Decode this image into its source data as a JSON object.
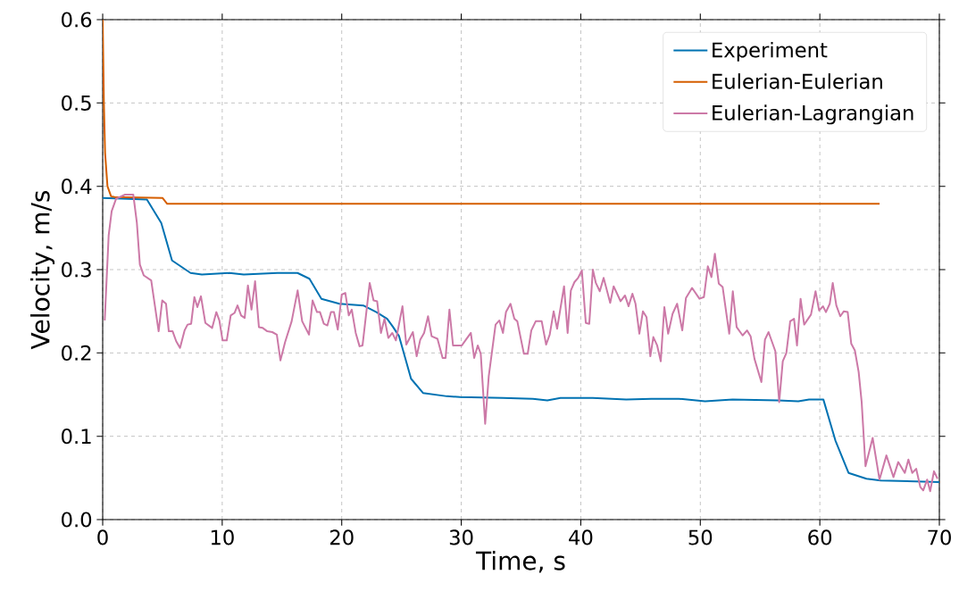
{
  "chart_data": {
    "type": "line",
    "xlabel": "Time, s",
    "ylabel": "Velocity, m/s",
    "xlim": [
      0,
      70
    ],
    "ylim": [
      0,
      0.6
    ],
    "xticks": [
      0,
      10,
      20,
      30,
      40,
      50,
      60,
      70
    ],
    "yticks": [
      {
        "value": 0,
        "label": "0.0"
      },
      0.1,
      0.2,
      0.3,
      0.4,
      0.5,
      0.6
    ],
    "grid": true,
    "legend": "top right",
    "series": [
      {
        "name": "Experiment",
        "color": "#0072b2",
        "x": [
          0,
          3.7,
          4.9,
          5.8,
          7.35,
          8.3,
          10.6,
          11.8,
          14.6,
          16.3,
          17.3,
          18.3,
          19.8,
          21.8,
          22.9,
          23.8,
          24.3,
          24.8,
          25.8,
          26.8,
          28.8,
          29.9,
          33.5,
          36,
          37.2,
          38.3,
          41,
          43.8,
          45.9,
          48.2,
          50.4,
          52.7,
          56.5,
          58.2,
          59.1,
          60.3,
          61.3,
          62.4,
          63.9,
          65.1,
          70
        ],
        "values": [
          0.386,
          0.384,
          0.356,
          0.311,
          0.296,
          0.294,
          0.296,
          0.294,
          0.296,
          0.296,
          0.289,
          0.265,
          0.259,
          0.257,
          0.249,
          0.241,
          0.231,
          0.22,
          0.169,
          0.152,
          0.148,
          0.147,
          0.146,
          0.145,
          0.143,
          0.146,
          0.146,
          0.144,
          0.145,
          0.145,
          0.142,
          0.144,
          0.143,
          0.142,
          0.144,
          0.144,
          0.095,
          0.056,
          0.049,
          0.047,
          0.045
        ]
      },
      {
        "name": "Eulerian-Eulerian",
        "color": "#d55e00",
        "x": [
          0,
          0.1,
          0.2,
          0.4,
          0.7,
          1,
          5,
          5.4,
          65
        ],
        "values": [
          0.6,
          0.5,
          0.44,
          0.4,
          0.388,
          0.387,
          0.386,
          0.379,
          0.379
        ]
      },
      {
        "name": "Eulerian-Lagrangian",
        "color": "#cc79a7",
        "x": [
          0.17,
          0.5,
          0.75,
          1.12,
          1.87,
          2.56,
          2.86,
          3.11,
          3.44,
          4.06,
          4.68,
          4.98,
          5.3,
          5.53,
          5.85,
          6.15,
          6.47,
          6.85,
          7.1,
          7.4,
          7.67,
          7.92,
          8.22,
          8.59,
          9.16,
          9.51,
          9.76,
          10.03,
          10.38,
          10.71,
          11.03,
          11.28,
          11.58,
          11.88,
          12.15,
          12.45,
          12.75,
          13.07,
          13.39,
          13.77,
          14.19,
          14.57,
          14.87,
          15.26,
          15.81,
          16.31,
          16.69,
          17.26,
          17.56,
          17.93,
          18.18,
          18.5,
          18.8,
          19.1,
          19.35,
          19.67,
          20.0,
          20.3,
          20.59,
          20.84,
          21.17,
          21.49,
          21.74,
          22.34,
          22.66,
          22.96,
          23.28,
          23.58,
          23.9,
          24.23,
          24.53,
          25.08,
          25.4,
          25.95,
          26.27,
          26.57,
          26.89,
          27.22,
          27.52,
          28.01,
          28.44,
          28.69,
          29.01,
          29.31,
          30.05,
          30.8,
          31.08,
          31.38,
          31.63,
          32.0,
          32.3,
          32.87,
          33.19,
          33.49,
          33.74,
          34.12,
          34.44,
          34.69,
          35.24,
          35.56,
          35.86,
          36.23,
          36.73,
          37.1,
          37.4,
          37.73,
          38.02,
          38.6,
          38.9,
          39.17,
          39.47,
          39.77,
          40.09,
          40.42,
          40.71,
          41.01,
          41.26,
          41.59,
          41.91,
          42.46,
          42.75,
          43.33,
          43.7,
          44.0,
          44.32,
          44.58,
          44.9,
          45.2,
          45.5,
          45.82,
          46.07,
          46.39,
          46.69,
          46.99,
          47.31,
          47.68,
          48.06,
          48.49,
          48.8,
          49.31,
          49.93,
          50.3,
          50.63,
          50.93,
          51.22,
          51.55,
          51.87,
          52.42,
          52.72,
          53.04,
          53.54,
          53.91,
          54.21,
          54.53,
          55.11,
          55.41,
          55.71,
          56.28,
          56.6,
          56.9,
          57.2,
          57.52,
          57.84,
          58.09,
          58.39,
          58.69,
          59.26,
          59.64,
          59.94,
          60.26,
          60.51,
          60.83,
          61.08,
          61.38,
          61.71,
          62.01,
          62.33,
          62.63,
          62.93,
          63.25,
          63.5,
          63.82,
          64.42,
          64.99,
          65.57,
          66.16,
          66.56,
          67.11,
          67.41,
          67.73,
          68.06,
          68.41,
          68.65,
          68.98,
          69.23,
          69.55,
          69.85
        ],
        "values": [
          0.239,
          0.341,
          0.37,
          0.385,
          0.39,
          0.39,
          0.356,
          0.306,
          0.293,
          0.287,
          0.226,
          0.263,
          0.259,
          0.226,
          0.226,
          0.214,
          0.206,
          0.227,
          0.234,
          0.235,
          0.267,
          0.255,
          0.268,
          0.236,
          0.23,
          0.249,
          0.239,
          0.215,
          0.215,
          0.245,
          0.248,
          0.257,
          0.245,
          0.242,
          0.281,
          0.252,
          0.286,
          0.231,
          0.23,
          0.226,
          0.225,
          0.222,
          0.191,
          0.213,
          0.238,
          0.275,
          0.238,
          0.222,
          0.263,
          0.249,
          0.249,
          0.235,
          0.233,
          0.249,
          0.249,
          0.228,
          0.27,
          0.272,
          0.245,
          0.252,
          0.224,
          0.208,
          0.209,
          0.284,
          0.263,
          0.262,
          0.224,
          0.241,
          0.218,
          0.224,
          0.215,
          0.256,
          0.21,
          0.225,
          0.196,
          0.216,
          0.224,
          0.244,
          0.22,
          0.217,
          0.194,
          0.194,
          0.252,
          0.209,
          0.209,
          0.224,
          0.194,
          0.209,
          0.199,
          0.115,
          0.172,
          0.234,
          0.239,
          0.224,
          0.249,
          0.259,
          0.241,
          0.238,
          0.199,
          0.199,
          0.227,
          0.238,
          0.238,
          0.21,
          0.222,
          0.25,
          0.229,
          0.28,
          0.224,
          0.275,
          0.285,
          0.29,
          0.299,
          0.236,
          0.235,
          0.3,
          0.284,
          0.274,
          0.29,
          0.26,
          0.28,
          0.262,
          0.269,
          0.256,
          0.271,
          0.259,
          0.223,
          0.25,
          0.243,
          0.196,
          0.219,
          0.209,
          0.19,
          0.255,
          0.223,
          0.247,
          0.259,
          0.227,
          0.266,
          0.278,
          0.265,
          0.267,
          0.304,
          0.291,
          0.319,
          0.283,
          0.279,
          0.223,
          0.274,
          0.231,
          0.221,
          0.227,
          0.22,
          0.193,
          0.165,
          0.216,
          0.225,
          0.202,
          0.141,
          0.19,
          0.2,
          0.238,
          0.241,
          0.209,
          0.265,
          0.234,
          0.246,
          0.274,
          0.251,
          0.256,
          0.249,
          0.259,
          0.284,
          0.257,
          0.244,
          0.25,
          0.249,
          0.211,
          0.203,
          0.177,
          0.141,
          0.064,
          0.098,
          0.048,
          0.077,
          0.051,
          0.069,
          0.056,
          0.072,
          0.056,
          0.061,
          0.039,
          0.035,
          0.048,
          0.034,
          0.058,
          0.049
        ]
      }
    ]
  }
}
